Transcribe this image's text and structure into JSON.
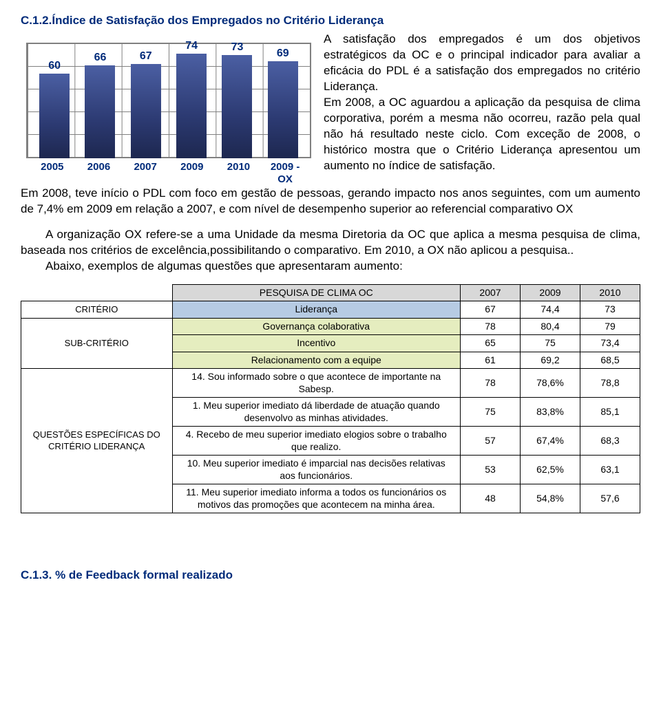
{
  "section_title": "C.1.2.Índice de Satisfação dos Empregados no Critério Liderança",
  "chart": {
    "type": "bar",
    "categories": [
      "2005",
      "2006",
      "2007",
      "2009",
      "2010",
      "2009 - OX"
    ],
    "values": [
      60,
      66,
      67,
      74,
      73,
      69
    ],
    "max": 74,
    "value_color": "#002b7a",
    "bar_fill": "linear-gradient(to bottom,#4b5fa3,#2c3a72,#1d274f)",
    "grid_color": "#808080",
    "label_fontsize": 15,
    "value_fontsize": 16
  },
  "para1": "A satisfação dos empregados é um dos objetivos estratégicos da OC e o principal indicador para avaliar a eficácia do PDL é a satisfação dos empregados no critério Liderança.",
  "para2": "Em 2008, a OC aguardou a aplicação da pesquisa de clima corporativa, porém a mesma não ocorreu, razão pela qual não há resultado neste ciclo. Com exceção de 2008, o histórico mostra que o Critério Liderança apresentou um aumento no índice de satisfação.",
  "para3": "Em 2008, teve início o PDL com foco em gestão de pessoas, gerando impacto nos anos seguintes, com um aumento de 7,4% em 2009 em relação a 2007, e com nível de desempenho superior ao referencial comparativo OX",
  "para4": "A organização OX refere-se a uma Unidade da mesma Diretoria da OC que aplica a mesma pesquisa de clima,  baseada nos critérios de excelência,possibilitando o comparativo. Em 2010, a OX não aplicou a pesquisa..",
  "para5": "Abaixo, exemplos de algumas questões que apresentaram aumento:",
  "table": {
    "header": [
      "PESQUISA DE CLIMA  OC",
      "2007",
      "2009",
      "2010"
    ],
    "rowlabels": {
      "criterio": "CRITÉRIO",
      "subcriterio": "SUB-CRITÉRIO",
      "questoes": "QUESTÕES ESPECÍFICAS DO CRITÉRIO LIDERANÇA"
    },
    "criterio_row": {
      "label": "Liderança",
      "v": [
        "67",
        "74,4",
        "73"
      ]
    },
    "sub_rows": [
      {
        "label": "Governança colaborativa",
        "v": [
          "78",
          "80,4",
          "79"
        ]
      },
      {
        "label": "Incentivo",
        "v": [
          "65",
          "75",
          "73,4"
        ]
      },
      {
        "label": "Relacionamento com a equipe",
        "v": [
          "61",
          "69,2",
          "68,5"
        ]
      }
    ],
    "q_rows": [
      {
        "label": "14. Sou informado sobre o que acontece de importante na Sabesp.",
        "v": [
          "78",
          "78,6%",
          "78,8"
        ]
      },
      {
        "label": "1. Meu superior imediato dá liberdade de atuação quando desenvolvo as minhas atividades.",
        "v": [
          "75",
          "83,8%",
          "85,1"
        ]
      },
      {
        "label": "4. Recebo de meu superior imediato elogios sobre o trabalho que realizo.",
        "v": [
          "57",
          "67,4%",
          "68,3"
        ]
      },
      {
        "label": "10. Meu superior imediato é imparcial nas decisões relativas aos funcionários.",
        "v": [
          "53",
          "62,5%",
          "63,1"
        ]
      },
      {
        "label": "11. Meu superior imediato informa a todos os funcionários os motivos das promoções que acontecem na minha área.",
        "v": [
          "48",
          "54,8%",
          "57,6"
        ]
      }
    ],
    "colors": {
      "header_bg": "#d8d8d8",
      "criterio_bg": "#b6cbe3",
      "sub_bg": "#e5edbf"
    }
  },
  "footer_title": "C.1.3. % de Feedback formal realizado"
}
